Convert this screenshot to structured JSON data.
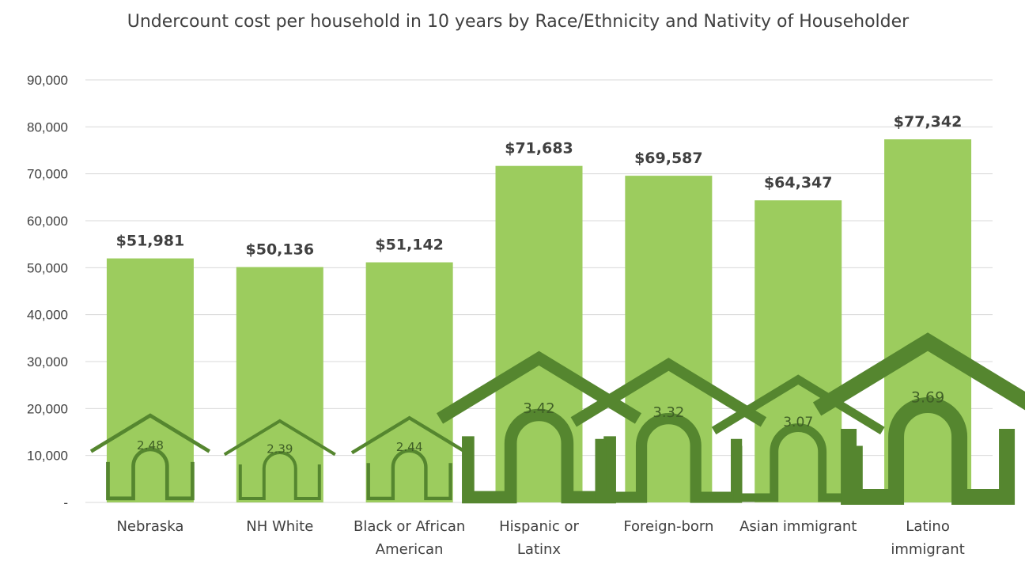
{
  "chart_data": {
    "type": "bar",
    "title": "Undercount cost per household in 10 years by Race/Ethnicity and Nativity of Householder",
    "categories": [
      [
        "Nebraska"
      ],
      [
        "NH White"
      ],
      [
        "Black or African",
        "American"
      ],
      [
        "Hispanic or",
        "Latinx"
      ],
      [
        "Foreign-born"
      ],
      [
        "Asian immigrant"
      ],
      [
        "Latino",
        "immigrant"
      ]
    ],
    "values": [
      51981,
      50136,
      51142,
      71683,
      69587,
      64347,
      77342
    ],
    "value_labels": [
      "$51,981",
      "$50,136",
      "$51,142",
      "$71,683",
      "$69,587",
      "$64,347",
      "$77,342"
    ],
    "house_values": [
      2.48,
      2.39,
      2.44,
      3.42,
      3.32,
      3.07,
      3.69
    ],
    "house_labels": [
      "2.48",
      "2.39",
      "2.44",
      "3.42",
      "3.32",
      "3.07",
      "3.69"
    ],
    "ylim": [
      0,
      90000
    ],
    "yticks": [
      "-",
      "10,000",
      "20,000",
      "30,000",
      "40,000",
      "50,000",
      "60,000",
      "70,000",
      "80,000",
      "90,000"
    ],
    "xlabel": "",
    "ylabel": "",
    "grid": true,
    "legend": "none",
    "colors": {
      "bar": "#9ccc5e",
      "house": "#55862f",
      "grid": "#d9d9d9",
      "text": "#404040"
    }
  }
}
